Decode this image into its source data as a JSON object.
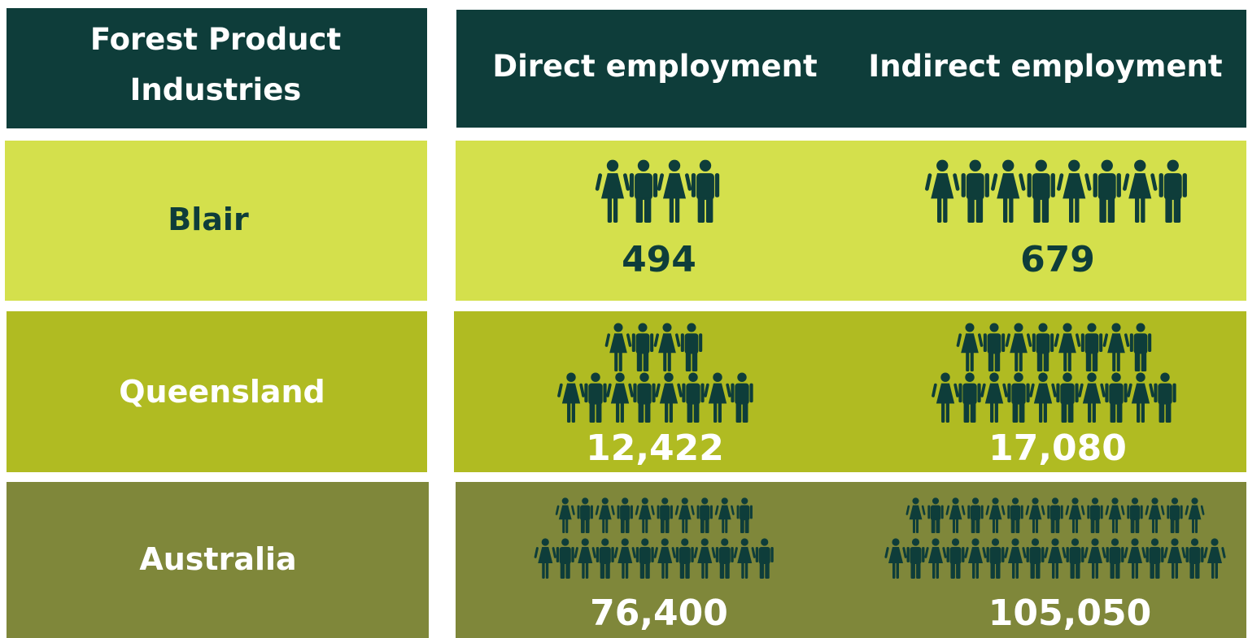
{
  "header": {
    "columns": [
      "Forest Product Industries",
      "Direct employment",
      "Indirect employment"
    ]
  },
  "rows": [
    {
      "label": "Blair",
      "direct": "494",
      "indirect": "679"
    },
    {
      "label": "Queensland",
      "direct": "12,422",
      "indirect": "17,080"
    },
    {
      "label": "Australia",
      "direct": "76,400",
      "indirect": "105,050"
    }
  ]
}
